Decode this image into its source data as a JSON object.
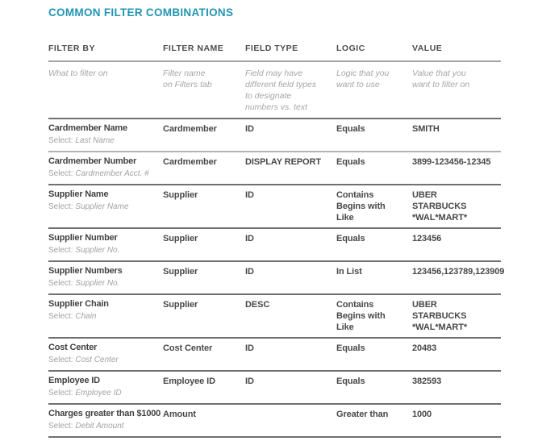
{
  "page": {
    "title": "COMMON FILTER COMBINATIONS"
  },
  "colors": {
    "accent": "#2196B3"
  },
  "table": {
    "select_prefix": "Select:",
    "columns": [
      {
        "label": "FILTER BY",
        "description": "What to filter on"
      },
      {
        "label": "FILTER NAME",
        "description": "Filter name\non Filters tab"
      },
      {
        "label": "FIELD TYPE",
        "description": "Field may have\ndifferent field types\nto designate\nnumbers vs. text"
      },
      {
        "label": "LOGIC",
        "description": "Logic that you\nwant to use"
      },
      {
        "label": "VALUE",
        "description": "Value that you\nwant to filter on"
      }
    ],
    "rows": [
      {
        "filter_by": "Cardmember Name",
        "select": "Last Name",
        "filter_name": "Cardmember",
        "field_type": "ID",
        "logic": "Equals",
        "value": "SMITH"
      },
      {
        "filter_by": "Cardmember Number",
        "select": "Cardmember Acct. #",
        "filter_name": "Cardmember",
        "field_type": "DISPLAY REPORT",
        "logic": "Equals",
        "value": "3899-123456-12345"
      },
      {
        "filter_by": "Supplier Name",
        "select": "Supplier Name",
        "filter_name": "Supplier",
        "field_type": "ID",
        "logic": "Contains\nBegins with\nLike",
        "value": "UBER\nSTARBUCKS\n*WAL*MART*"
      },
      {
        "filter_by": "Supplier Number",
        "select": "Supplier No.",
        "filter_name": "Supplier",
        "field_type": "ID",
        "logic": "Equals",
        "value": "123456"
      },
      {
        "filter_by": "Supplier Numbers",
        "select": "Supplier No.",
        "filter_name": "Supplier",
        "field_type": "ID",
        "logic": "In List",
        "value": "123456,123789,123909"
      },
      {
        "filter_by": "Supplier Chain",
        "select": "Chain",
        "filter_name": "Supplier",
        "field_type": "DESC",
        "logic": "Contains\nBegins with\nLike",
        "value": "UBER\nSTARBUCKS\n*WAL*MART*"
      },
      {
        "filter_by": "Cost Center",
        "select": "Cost Center",
        "filter_name": "Cost Center",
        "field_type": "ID",
        "logic": "Equals",
        "value": "20483"
      },
      {
        "filter_by": "Employee ID",
        "select": "Employee ID",
        "filter_name": "Employee ID",
        "field_type": "ID",
        "logic": "Equals",
        "value": "382593"
      },
      {
        "filter_by": "Charges greater than $1000",
        "select": "Debit Amount",
        "filter_name": "Amount",
        "field_type": "",
        "logic": "Greater than",
        "value": "1000"
      }
    ]
  }
}
